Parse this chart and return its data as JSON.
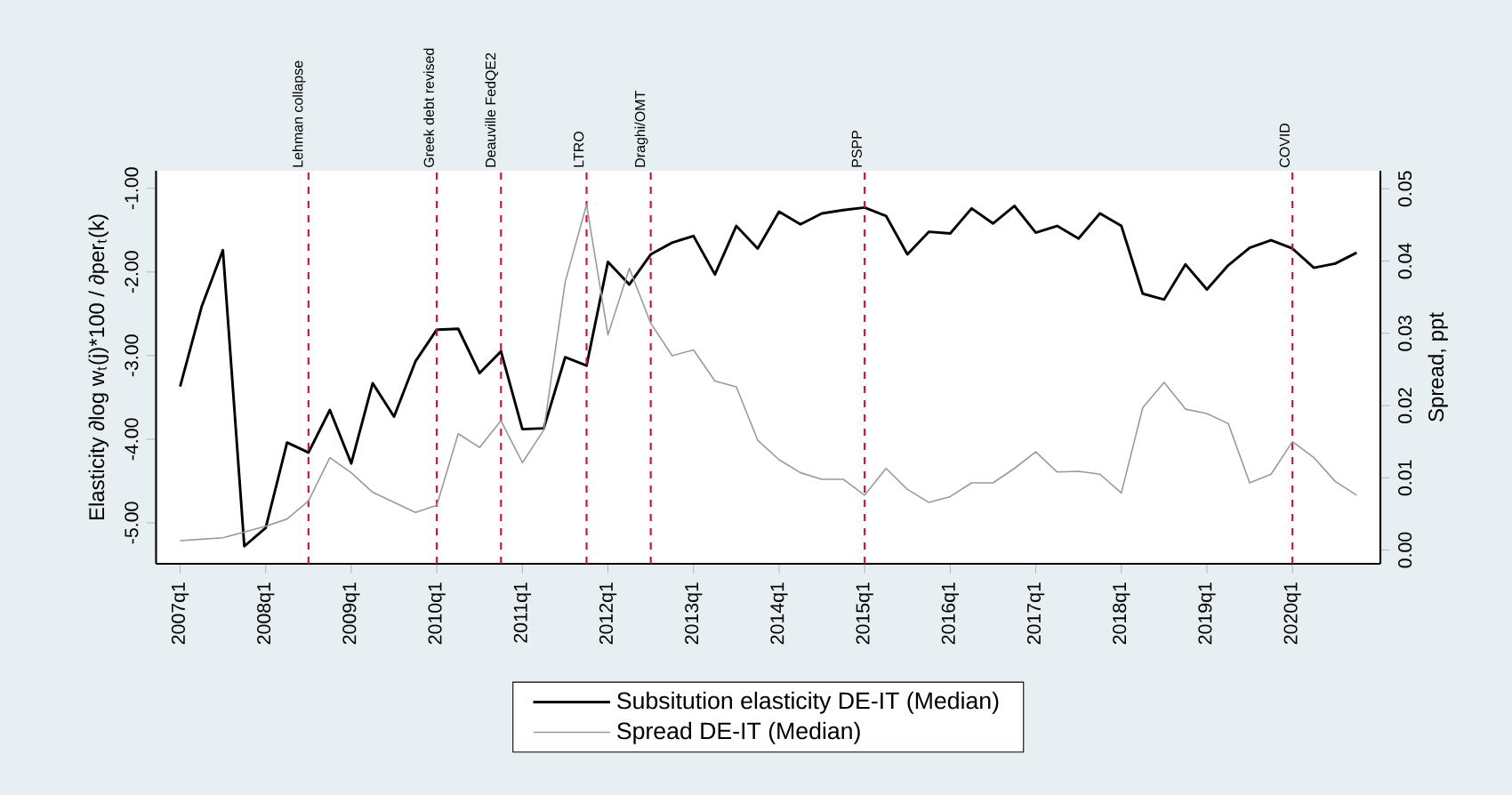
{
  "chart_data": {
    "type": "line",
    "ylabel": "Elasticity  ∂log w$_{t}$(j)*100 / ∂per$_{t}$(k)",
    "y2label": "Spread, ppt",
    "x": [
      "2007-01",
      "2007-04",
      "2007-07",
      "2007-10",
      "2008-01",
      "2008-04",
      "2008-07",
      "2008-10",
      "2009-01",
      "2009-04",
      "2009-07",
      "2009-10",
      "2010-01",
      "2010-04",
      "2010-07",
      "2010-10",
      "2011-01",
      "2011-04",
      "2011-07",
      "2011-10",
      "2012-01",
      "2012-04",
      "2012-07",
      "2012-10",
      "2013-01",
      "2013-04",
      "2013-07",
      "2013-10",
      "2014-01",
      "2014-04",
      "2014-07",
      "2014-10",
      "2015-01",
      "2015-04",
      "2015-07",
      "2015-10",
      "2016-01",
      "2016-04",
      "2016-07",
      "2016-10",
      "2017-01",
      "2017-04",
      "2017-07",
      "2017-10",
      "2018-01",
      "2018-04",
      "2018-07",
      "2018-10",
      "2019-01",
      "2019-04",
      "2019-07",
      "2019-10",
      "2020-01",
      "2020-04",
      "2020-07",
      "2020-10"
    ],
    "series": [
      {
        "name": "Subsitution elasticity DE-IT (Median)",
        "color": "#000000",
        "values": [
          -3.37,
          -2.42,
          -1.74,
          -5.28,
          -5.06,
          -4.04,
          -4.16,
          -3.65,
          -4.29,
          -3.33,
          -3.73,
          -3.07,
          -2.69,
          -2.68,
          -3.21,
          -2.95,
          -3.88,
          -3.87,
          -3.02,
          -3.12,
          -1.88,
          -2.15,
          -1.79,
          -1.65,
          -1.57,
          -2.03,
          -1.45,
          -1.72,
          -1.28,
          -1.43,
          -1.3,
          -1.26,
          -1.23,
          -1.33,
          -1.79,
          -1.52,
          -1.54,
          -1.24,
          -1.42,
          -1.21,
          -1.53,
          -1.45,
          -1.6,
          -1.3,
          -1.45,
          -2.26,
          -2.33,
          -1.91,
          -2.21,
          -1.92,
          -1.71,
          -1.62,
          -1.72,
          -1.95,
          -1.9,
          -1.77
        ]
      },
      {
        "name": "Spread DE-IT (Median)",
        "color": "#9a9a9a",
        "axis": "y2",
        "values": [
          0.0013,
          0.0015,
          0.0017,
          0.0025,
          0.0033,
          0.0043,
          0.0068,
          0.0128,
          0.0107,
          0.008,
          0.0066,
          0.0052,
          0.0062,
          0.0161,
          0.0142,
          0.0179,
          0.0121,
          0.0166,
          0.0371,
          0.0478,
          0.0298,
          0.039,
          0.0314,
          0.0269,
          0.0277,
          0.0234,
          0.0226,
          0.0152,
          0.0125,
          0.0107,
          0.0098,
          0.0098,
          0.0076,
          0.0113,
          0.0084,
          0.0066,
          0.0074,
          0.0093,
          0.0093,
          0.0113,
          0.0136,
          0.0108,
          0.0109,
          0.0105,
          0.0079,
          0.0197,
          0.0232,
          0.0195,
          0.0189,
          0.0175,
          0.0093,
          0.0105,
          0.015,
          0.0128,
          0.0095,
          0.0076
        ]
      }
    ],
    "xlim": [
      "2006-09-20",
      "2021-01-11"
    ],
    "xticks": [
      {
        "value": "2007-01",
        "label": "2007q1"
      },
      {
        "value": "2008-01",
        "label": "2008q1"
      },
      {
        "value": "2009-01",
        "label": "2009q1"
      },
      {
        "value": "2010-01",
        "label": "2010q1"
      },
      {
        "value": "2011-01",
        "label": "2011q1"
      },
      {
        "value": "2012-01",
        "label": "2012q1"
      },
      {
        "value": "2013-01",
        "label": "2013q1"
      },
      {
        "value": "2014-01",
        "label": "2014q1"
      },
      {
        "value": "2015-01",
        "label": "2015q1"
      },
      {
        "value": "2016-01",
        "label": "2016q1"
      },
      {
        "value": "2017-01",
        "label": "2017q1"
      },
      {
        "value": "2018-01",
        "label": "2018q1"
      },
      {
        "value": "2019-01",
        "label": "2019q1"
      },
      {
        "value": "2020-01",
        "label": "2020q1"
      }
    ],
    "ylim": [
      -5.49,
      -0.79
    ],
    "yticks": [
      {
        "value": -5,
        "label": "-5.00"
      },
      {
        "value": -4,
        "label": "-4.00"
      },
      {
        "value": -3,
        "label": "-3.00"
      },
      {
        "value": -2,
        "label": "-2.00"
      },
      {
        "value": -1,
        "label": "-1.00"
      }
    ],
    "y2lim": [
      -0.0019,
      0.0525
    ],
    "y2ticks": [
      {
        "value": 0,
        "label": "0.00"
      },
      {
        "value": 0.01,
        "label": "0.01"
      },
      {
        "value": 0.02,
        "label": "0.02"
      },
      {
        "value": 0.03,
        "label": "0.03"
      },
      {
        "value": 0.04,
        "label": "0.04"
      },
      {
        "value": 0.05,
        "label": "0.05"
      }
    ],
    "ref_lines": [
      {
        "axis": "x",
        "value": "2008-07",
        "label": "Lehman collapse",
        "color": "#c8103e",
        "line_style": "dashed"
      },
      {
        "axis": "x",
        "value": "2010-01",
        "label": "Greek debt revised",
        "color": "#c8103e",
        "line_style": "dashed"
      },
      {
        "axis": "x",
        "value": "2010-10",
        "label": "Deauville FedQE2",
        "color": "#c8103e",
        "line_style": "dashed"
      },
      {
        "axis": "x",
        "value": "2011-10",
        "label": "LTRO",
        "color": "#c8103e",
        "line_style": "dashed"
      },
      {
        "axis": "x",
        "value": "2012-07",
        "label": "Draghi/OMT",
        "color": "#c8103e",
        "line_style": "dashed"
      },
      {
        "axis": "x",
        "value": "2015-01",
        "label": "PSPP",
        "color": "#c8103e",
        "line_style": "dashed"
      },
      {
        "axis": "x",
        "value": "2020-01",
        "label": "COVID",
        "color": "#c8103e",
        "line_style": "dashed"
      }
    ],
    "legend": "bottom"
  }
}
